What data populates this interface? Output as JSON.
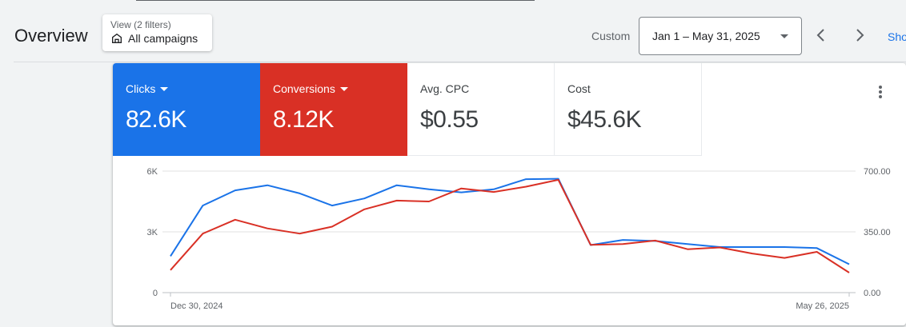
{
  "header": {
    "title": "Overview",
    "view_chip": {
      "sub": "View (2 filters)",
      "main": "All campaigns",
      "icon": "store-icon"
    },
    "custom_label": "Custom",
    "date_range": "Jan 1 – May 31, 2025",
    "show_link": "Sho"
  },
  "scorecards": [
    {
      "label": "Clicks",
      "value": "82.6K",
      "color": "#1a73e8"
    },
    {
      "label": "Conversions",
      "value": "8.12K",
      "color": "#d93025"
    },
    {
      "label": "Avg. CPC",
      "value": "$0.55"
    },
    {
      "label": "Cost",
      "value": "$45.6K"
    }
  ],
  "chart_data": {
    "type": "line",
    "x_start_label": "Dec 30, 2024",
    "x_end_label": "May 26, 2025",
    "x": [
      "Dec 30, 2024",
      "",
      "",
      "",
      "",
      "",
      "",
      "",
      "",
      "",
      "",
      "",
      "",
      "",
      "",
      "",
      "",
      "",
      "",
      "",
      "",
      "May 26, 2025"
    ],
    "left_axis": {
      "ticks": [
        "0",
        "3K",
        "6K"
      ],
      "range": [
        0,
        6000
      ]
    },
    "right_axis": {
      "ticks": [
        "0.00",
        "350.00",
        "700.00"
      ],
      "range": [
        0,
        700
      ]
    },
    "series": [
      {
        "color": "#1a73e8",
        "axis": "left",
        "values": [
          1800,
          4300,
          5050,
          5300,
          4900,
          4300,
          4650,
          5300,
          5100,
          4950,
          5100,
          5600,
          5620,
          2350,
          2600,
          2550,
          2400,
          2250,
          2250,
          2250,
          2200,
          1400
        ]
      },
      {
        "color": "#d93025",
        "axis": "right",
        "values": [
          130,
          340,
          420,
          370,
          340,
          380,
          480,
          530,
          525,
          600,
          580,
          610,
          650,
          275,
          280,
          300,
          250,
          260,
          225,
          200,
          235,
          115
        ]
      }
    ],
    "grid": true
  }
}
